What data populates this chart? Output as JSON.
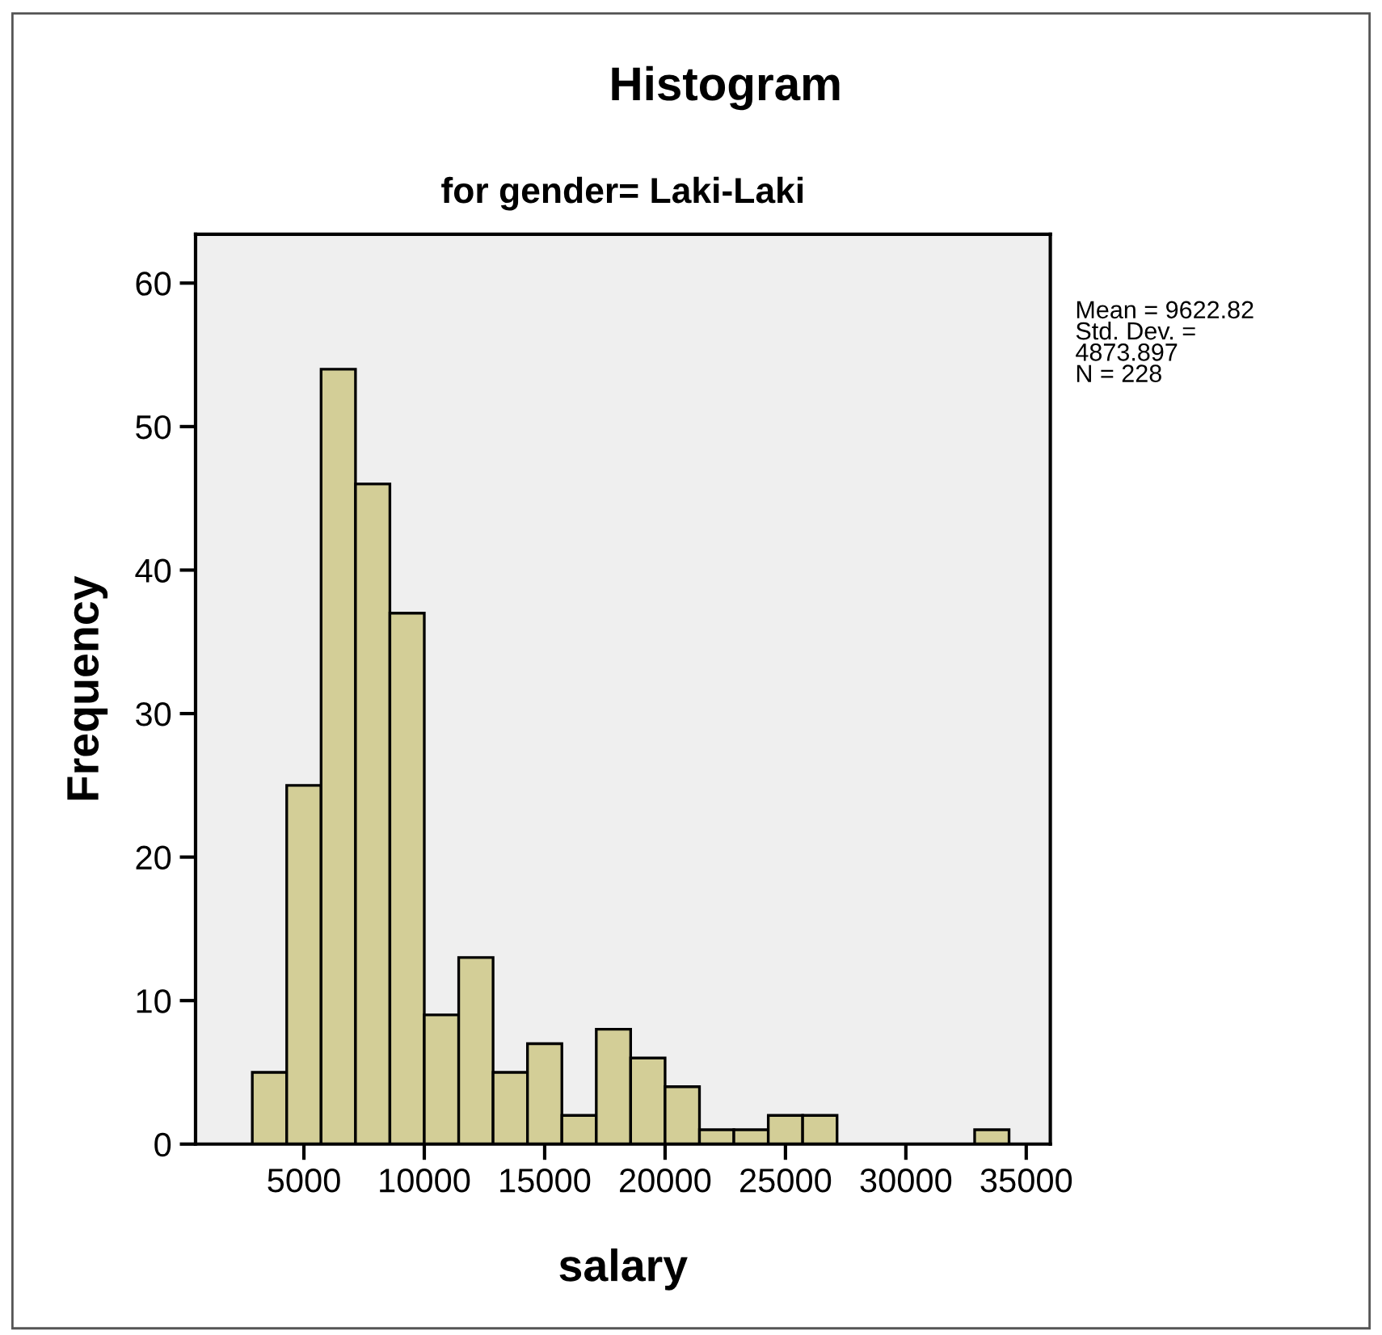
{
  "chart_data": {
    "type": "histogram",
    "title": "Histogram",
    "subtitle": "for gender= Laki-Laki",
    "xlabel": "salary",
    "ylabel": "Frequency",
    "bins": [
      2857,
      4286,
      5714,
      7143,
      8571,
      10000,
      11429,
      12857,
      14286,
      15714,
      17143,
      18571,
      20000,
      21429,
      22857,
      24286,
      25714,
      27143,
      28571,
      30000,
      31429,
      32857,
      34286
    ],
    "values": [
      5,
      25,
      54,
      46,
      37,
      9,
      13,
      5,
      7,
      2,
      8,
      6,
      4,
      1,
      1,
      2,
      2,
      0,
      0,
      0,
      0,
      1
    ],
    "color": "#d3ce97",
    "xlim": [
      500,
      36000
    ],
    "ylim": [
      0,
      63.4
    ],
    "xticks": [
      5000,
      10000,
      15000,
      20000,
      25000,
      30000,
      35000
    ],
    "yticks": [
      0,
      10,
      20,
      30,
      40,
      50,
      60
    ],
    "grid": false,
    "annotations": [
      "Mean = 9622.82\nStd. Dev. =\n4873.897\nN = 228"
    ]
  }
}
